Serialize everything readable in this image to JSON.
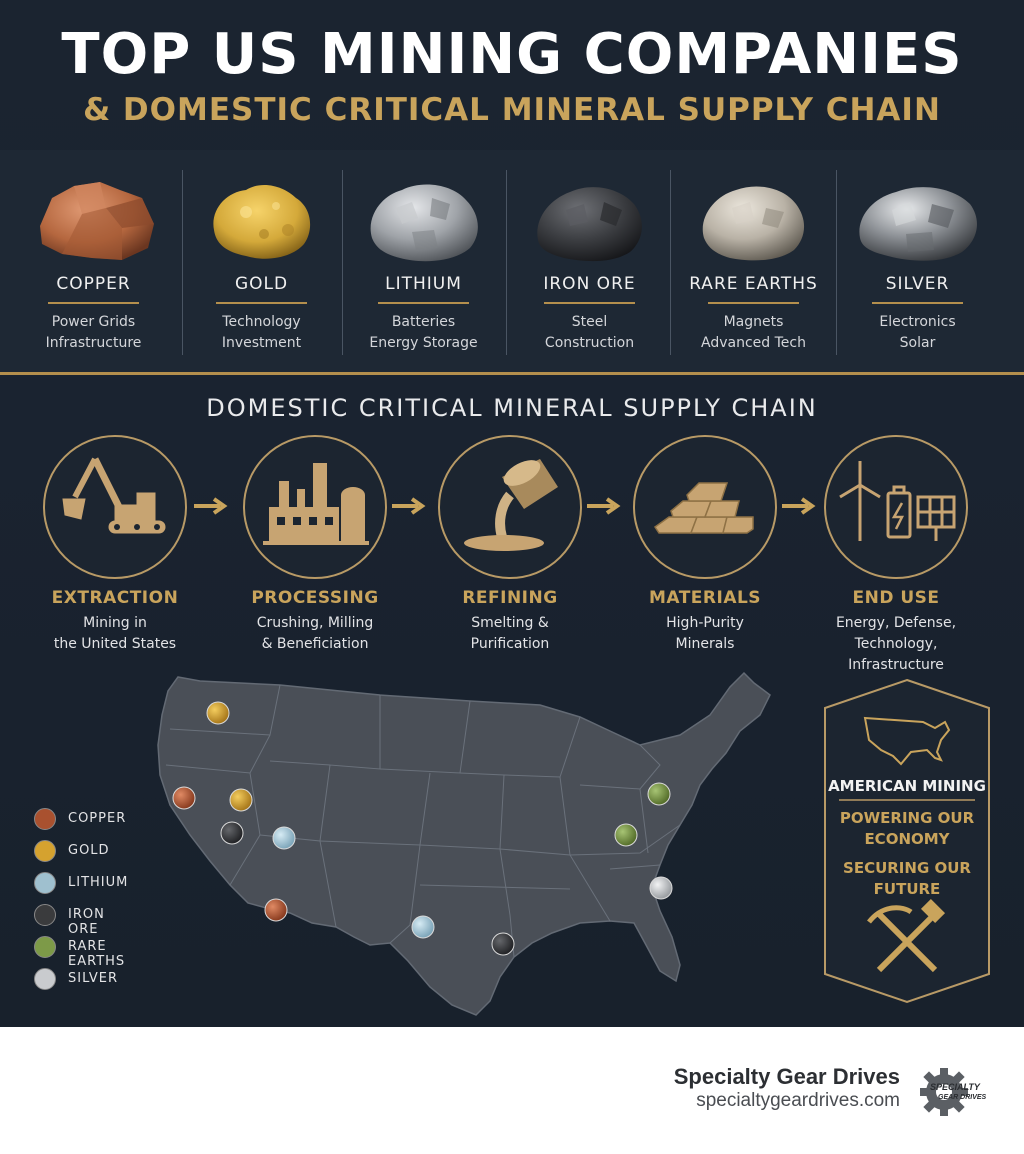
{
  "header": {
    "title": "TOP US MINING COMPANIES",
    "subtitle": "& DOMESTIC CRITICAL MINERAL SUPPLY CHAIN"
  },
  "minerals": [
    {
      "name": "COPPER",
      "line1": "Power Grids",
      "line2": "Infrastructure",
      "color": "#b5673f"
    },
    {
      "name": "GOLD",
      "line1": "Technology",
      "line2": "Investment",
      "color": "#d4a93a"
    },
    {
      "name": "LITHIUM",
      "line1": "Batteries",
      "line2": "Energy Storage",
      "color": "#9fa3a8"
    },
    {
      "name": "IRON ORE",
      "line1": "Steel",
      "line2": "Construction",
      "color": "#3c3e42"
    },
    {
      "name": "RARE EARTHS",
      "line1": "Magnets",
      "line2": "Advanced Tech",
      "color": "#b9b2a6"
    },
    {
      "name": "SILVER",
      "line1": "Electronics",
      "line2": "Solar",
      "color": "#8e9297"
    }
  ],
  "supply_chain": {
    "title": "DOMESTIC CRITICAL MINERAL SUPPLY CHAIN",
    "steps": [
      {
        "name": "EXTRACTION",
        "line1": "Mining in",
        "line2": "the United States",
        "icon": "excavator-icon"
      },
      {
        "name": "PROCESSING",
        "line1": "Crushing, Milling",
        "line2": "& Beneficiation",
        "icon": "factory-icon"
      },
      {
        "name": "REFINING",
        "line1": "Smelting &",
        "line2": "Purification",
        "icon": "crucible-icon"
      },
      {
        "name": "MATERIALS",
        "line1": "High-Purity",
        "line2": "Minerals",
        "icon": "ingots-icon"
      },
      {
        "name": "END USE",
        "line1": "Energy, Defense,",
        "line2": "Technology, Infrastructure",
        "icon": "energy-icon"
      }
    ]
  },
  "legend": [
    {
      "label": "COPPER",
      "color": "#a9512f"
    },
    {
      "label": "GOLD",
      "color": "#d5a22f"
    },
    {
      "label": "LITHIUM",
      "color": "#9fc0cf"
    },
    {
      "label": "IRON ORE",
      "color": "#3a3b3d"
    },
    {
      "label": "RARE EARTHS",
      "color": "#7d9a48"
    },
    {
      "label": "SILVER",
      "color": "#c9cbce"
    }
  ],
  "badge": {
    "title": "AMERICAN MINING",
    "line1": "POWERING OUR",
    "line2": "ECONOMY",
    "line3": "SECURING OUR",
    "line4": "FUTURE"
  },
  "footer": {
    "company": "Specialty Gear Drives",
    "url": "specialtygeardrives.com",
    "logo_text1": "SPECIALTY",
    "logo_text2": "GEAR DRIVES"
  },
  "colors": {
    "accent": "#c9a45c",
    "background": "#1b2430"
  }
}
